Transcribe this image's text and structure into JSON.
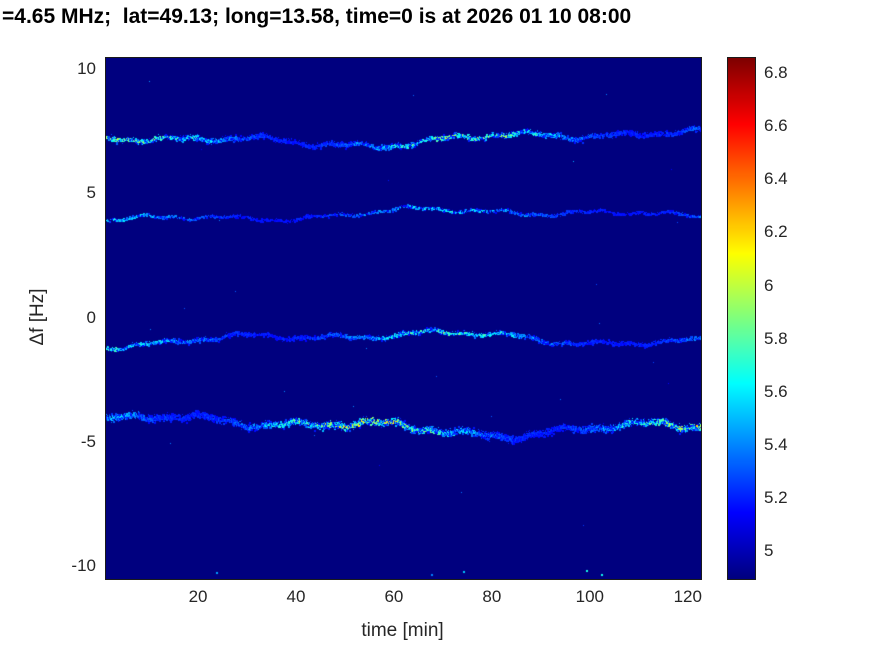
{
  "title": "=4.65 MHz;  lat=49.13; long=13.58, time=0 is at 2026 01 10 08:00",
  "chart_data": {
    "type": "heatmap",
    "title": "=4.65 MHz;  lat=49.13; long=13.58, time=0 is at 2026 01 10 08:00",
    "description": "Doppler spectrogram: four noisy horizontal spectral traces near +7.3, +4.2, -0.8 and -4.3 Hz over 0-122 min, jet colormap on dark-blue noise floor",
    "xlabel": "time [min]",
    "ylabel": "Δf [Hz]",
    "axes": {
      "x_ticks": [
        20,
        40,
        60,
        80,
        100,
        120
      ],
      "y_ticks": [
        10,
        5,
        0,
        -5,
        -10
      ],
      "xlim": [
        1,
        122.5
      ],
      "ylim": [
        -10.5,
        10.5
      ],
      "grid": false
    },
    "colorbar": {
      "ticks": [
        6.8,
        6.6,
        6.4,
        6.2,
        6,
        5.8,
        5.6,
        5.4,
        5.2,
        5
      ],
      "vmin": 4.9,
      "vmax": 6.86,
      "colormap": "jet",
      "position": "right"
    },
    "background_value": 4.9,
    "bands": [
      {
        "center_hz": 7.3,
        "wiggle_amp_hz": 0.22,
        "thickness_hz": 0.11,
        "base_value": 5.15,
        "peak_value": 6.15,
        "speckle_density": 3.5,
        "line_density": 0.85
      },
      {
        "center_hz": 4.2,
        "wiggle_amp_hz": 0.18,
        "thickness_hz": 0.065,
        "base_value": 5.15,
        "peak_value": 5.75,
        "speckle_density": 1.3,
        "line_density": 0.55
      },
      {
        "center_hz": -0.8,
        "wiggle_amp_hz": 0.2,
        "thickness_hz": 0.09,
        "base_value": 5.15,
        "peak_value": 5.95,
        "speckle_density": 2.8,
        "line_density": 0.8
      },
      {
        "center_hz": -4.3,
        "wiggle_amp_hz": 0.26,
        "thickness_hz": 0.145,
        "base_value": 5.15,
        "peak_value": 6.35,
        "speckle_density": 5.5,
        "line_density": 0.9
      }
    ],
    "noise_specks": 30,
    "bottom_edge_specks": 6,
    "seed": 7
  }
}
